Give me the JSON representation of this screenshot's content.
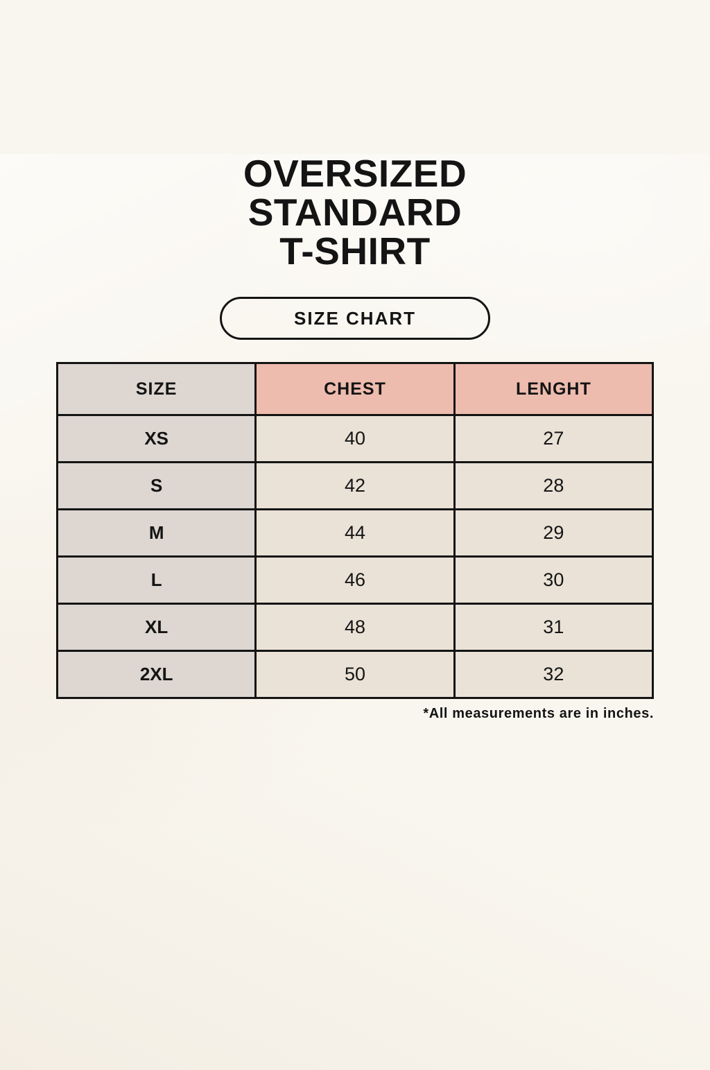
{
  "header": {
    "title_lines": [
      "OVERSIZED",
      "STANDARD",
      "T-SHIRT"
    ],
    "button_label": "SIZE CHART"
  },
  "footnote": "*All measurements are in inches.",
  "colors": {
    "background": "#f9f6ef",
    "header_accent": "#edbcae",
    "size_column": "#ddd6d1",
    "data_cell": "#eae2d7",
    "border": "#141414",
    "text": "#141414"
  },
  "chart_data": {
    "type": "table",
    "title": "OVERSIZED STANDARD T-SHIRT",
    "subtitle": "SIZE CHART",
    "columns": [
      "SIZE",
      "CHEST",
      "LENGHT"
    ],
    "rows": [
      [
        "XS",
        40,
        27
      ],
      [
        "S",
        42,
        28
      ],
      [
        "M",
        44,
        29
      ],
      [
        "L",
        46,
        30
      ],
      [
        "XL",
        48,
        31
      ],
      [
        "2XL",
        50,
        32
      ]
    ],
    "units": "inches",
    "note": "*All measurements are in inches."
  }
}
